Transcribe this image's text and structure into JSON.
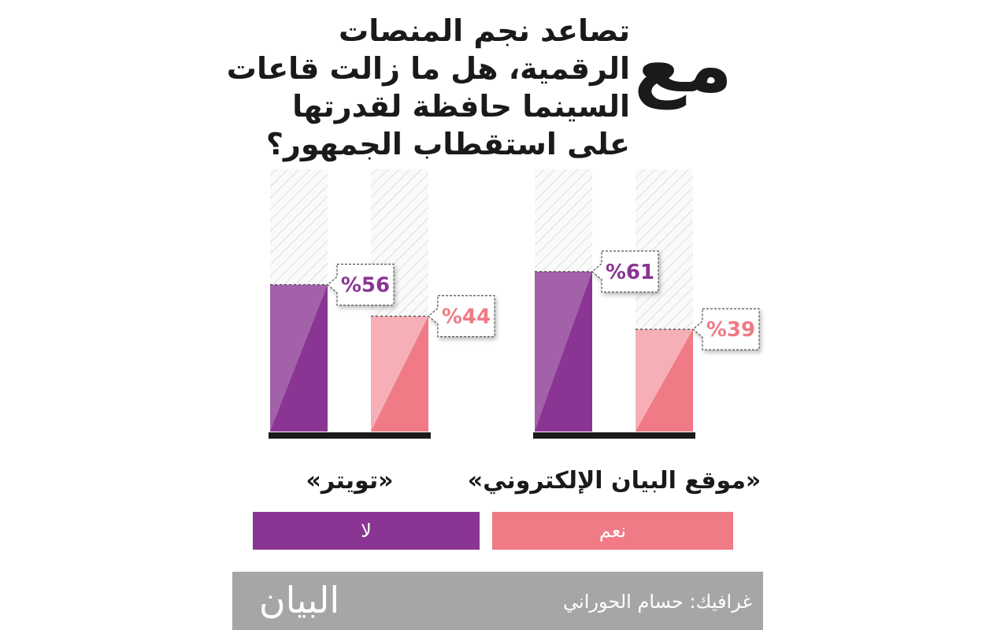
{
  "header": {
    "logo_word": "مع",
    "title_lines": [
      "تصاعد نجم المنصات",
      "الرقمية، هل ما زالت قاعات",
      "السينما حافظة لقدرتها",
      "على استقطاب الجمهور؟"
    ]
  },
  "colors": {
    "yes": "#f07a85",
    "no": "#8a3593",
    "footer": "#a6a6a6"
  },
  "chart_data": {
    "type": "bar",
    "categories": [
      "«موقع البيان الإلكتروني»",
      "«تويتر»"
    ],
    "series": [
      {
        "name": "نعم",
        "values": [
          39,
          44
        ]
      },
      {
        "name": "لا",
        "values": [
          61,
          56
        ]
      }
    ],
    "labels": [
      [
        "%39",
        "%61"
      ],
      [
        "%44",
        "%56"
      ]
    ],
    "ylim": [
      0,
      100
    ],
    "grid": false,
    "legend_position": "bottom"
  },
  "footer": {
    "credit": "غرافيك: حسام الحوراني",
    "logo": "البيان"
  }
}
